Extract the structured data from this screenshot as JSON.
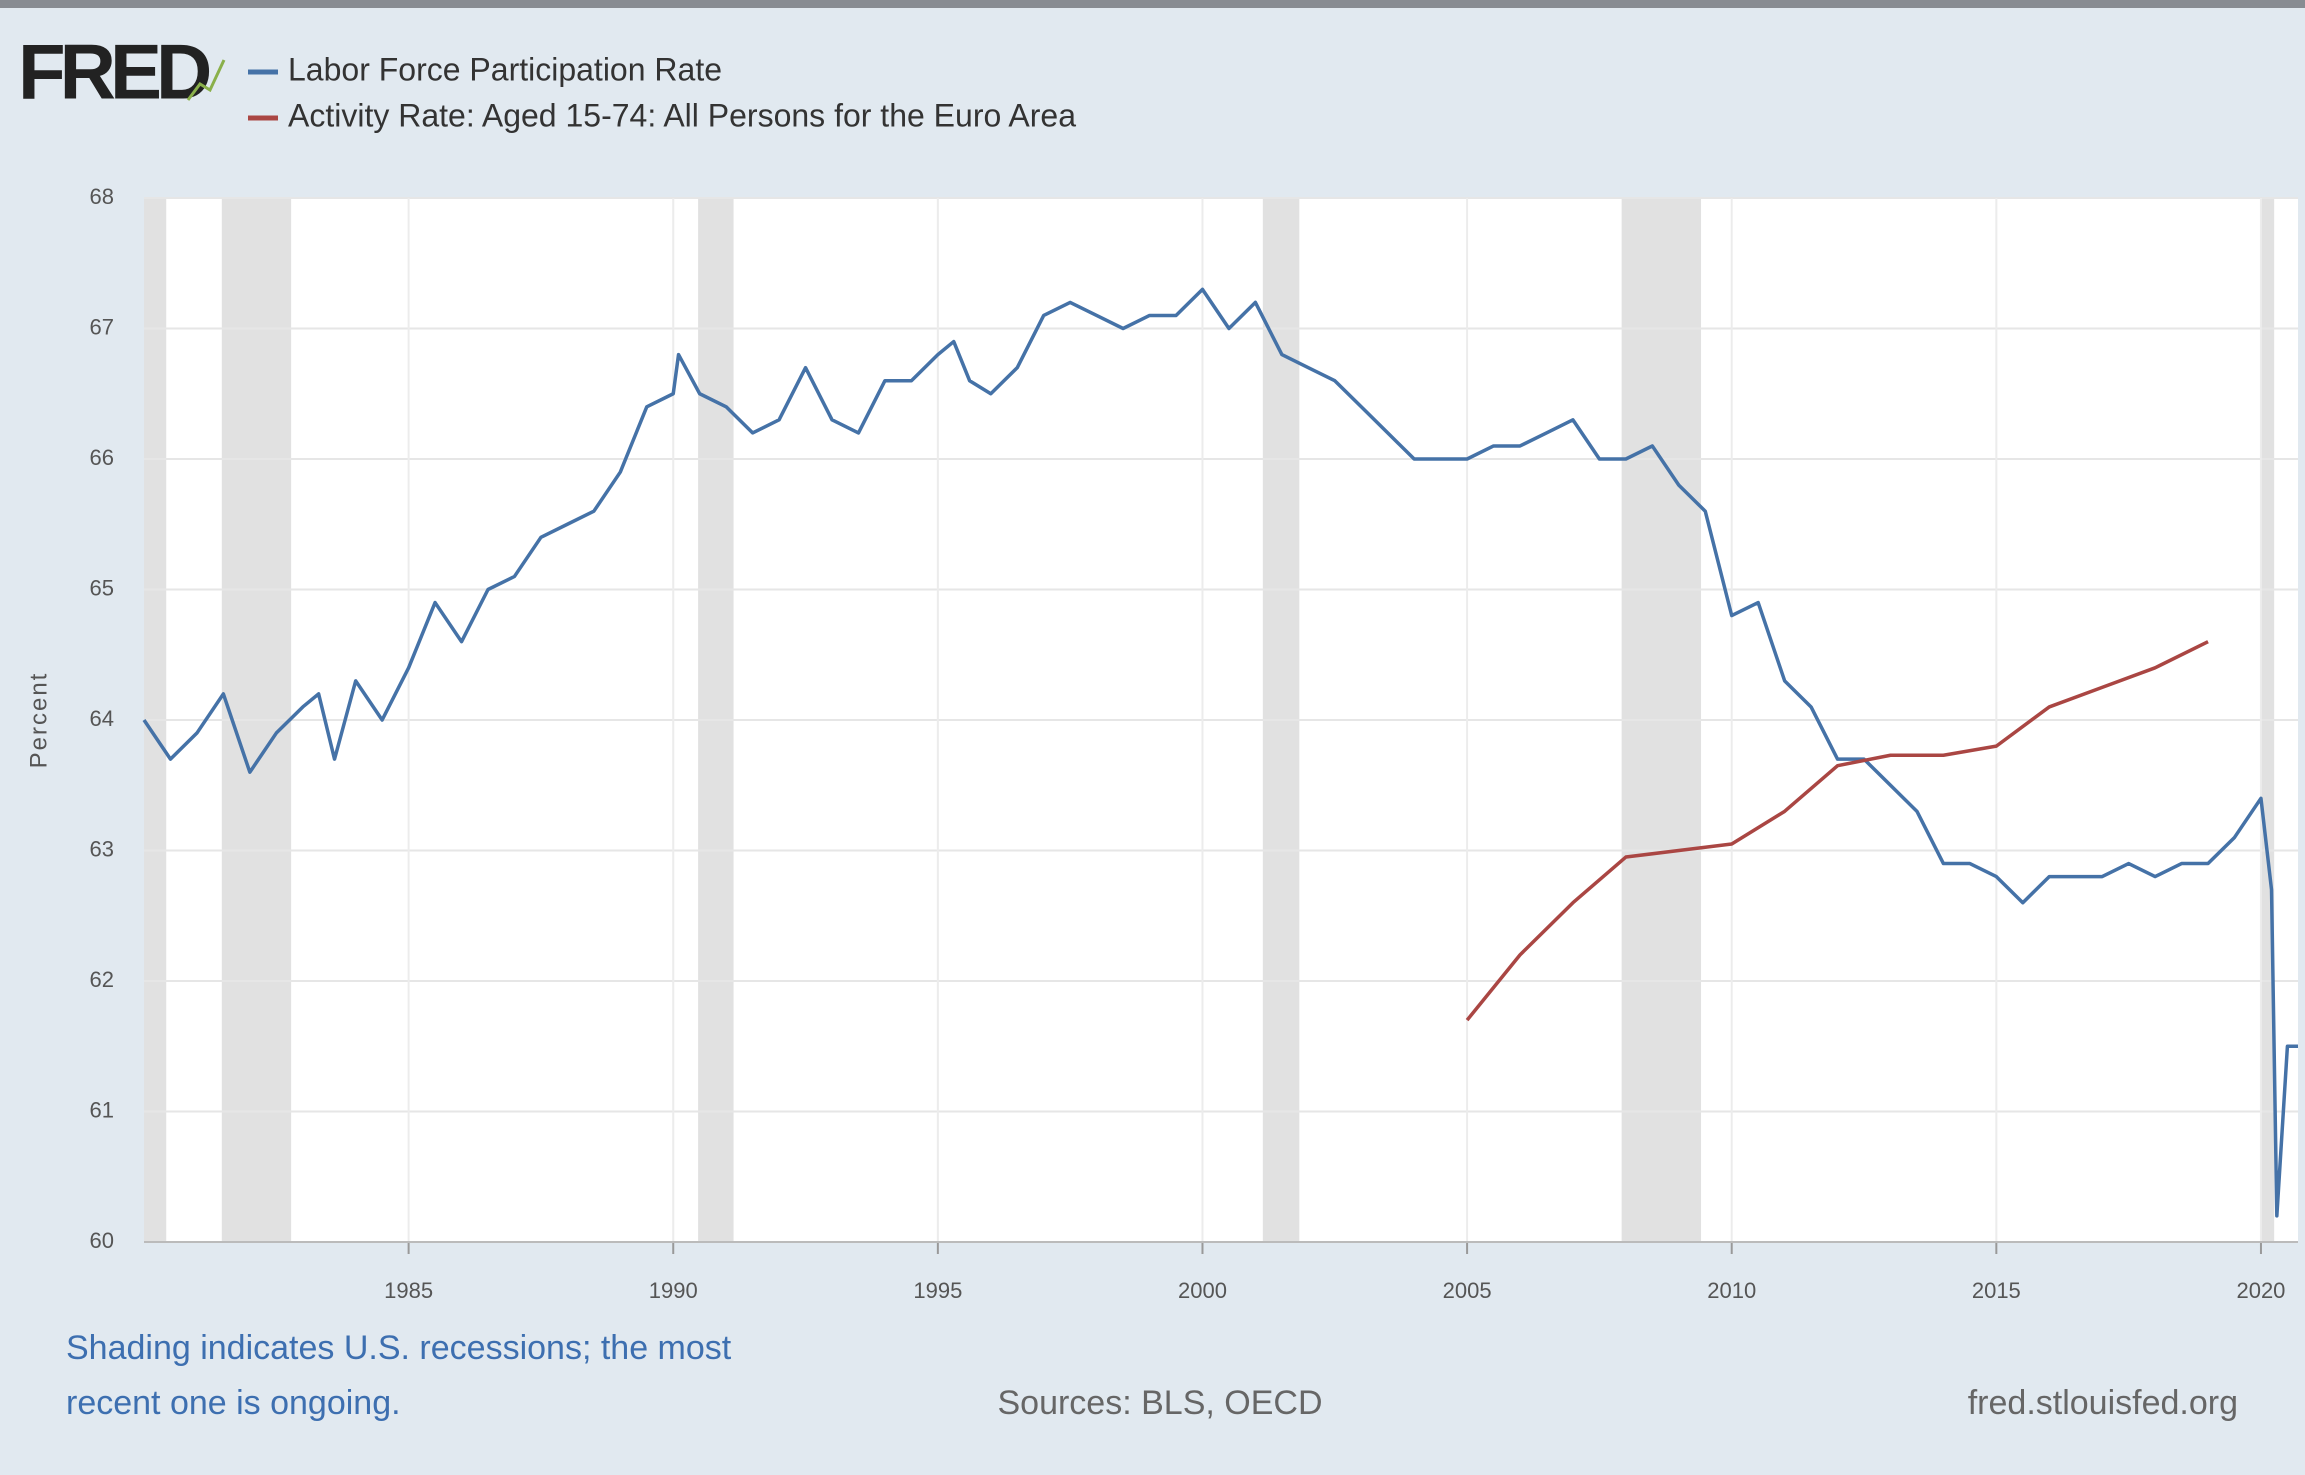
{
  "logo": "FRED",
  "chart_data": {
    "type": "line",
    "y_label": "Percent",
    "xlim": [
      1980,
      2020.7
    ],
    "xticks": [
      1985,
      1990,
      1995,
      2000,
      2005,
      2010,
      2015,
      2020
    ],
    "ylim": [
      60,
      68
    ],
    "yticks": [
      60,
      61,
      62,
      63,
      64,
      65,
      66,
      67,
      68
    ],
    "grid": true,
    "recessions": [
      [
        1980.0,
        1980.42
      ],
      [
        1981.47,
        1982.78
      ],
      [
        1990.47,
        1991.14
      ],
      [
        2001.14,
        2001.83
      ],
      [
        2007.92,
        2009.42
      ],
      [
        2020.0,
        2020.25
      ]
    ],
    "series": [
      {
        "name": "Labor Force Participation Rate",
        "color": "#4572a7",
        "x": [
          1980.0,
          1980.5,
          1981.0,
          1981.5,
          1982.0,
          1982.5,
          1983.0,
          1983.3,
          1983.6,
          1984.0,
          1984.5,
          1985.0,
          1985.5,
          1986.0,
          1986.5,
          1987.0,
          1987.5,
          1988.0,
          1988.5,
          1989.0,
          1989.5,
          1990.0,
          1990.1,
          1990.5,
          1991.0,
          1991.5,
          1992.0,
          1992.5,
          1993.0,
          1993.5,
          1994.0,
          1994.5,
          1995.0,
          1995.3,
          1995.6,
          1996.0,
          1996.5,
          1997.0,
          1997.5,
          1998.0,
          1998.5,
          1999.0,
          1999.5,
          2000.0,
          2000.5,
          2001.0,
          2001.5,
          2002.0,
          2002.5,
          2003.0,
          2003.5,
          2004.0,
          2004.5,
          2005.0,
          2005.5,
          2006.0,
          2006.5,
          2007.0,
          2007.5,
          2008.0,
          2008.5,
          2009.0,
          2009.5,
          2010.0,
          2010.5,
          2011.0,
          2011.5,
          2012.0,
          2012.5,
          2013.0,
          2013.5,
          2014.0,
          2014.5,
          2015.0,
          2015.5,
          2016.0,
          2016.5,
          2017.0,
          2017.5,
          2018.0,
          2018.5,
          2019.0,
          2019.5,
          2020.0,
          2020.2,
          2020.3,
          2020.5,
          2020.7
        ],
        "values": [
          64.0,
          63.7,
          63.9,
          64.2,
          63.6,
          63.9,
          64.1,
          64.2,
          63.7,
          64.3,
          64.0,
          64.4,
          64.9,
          64.6,
          65.0,
          65.1,
          65.4,
          65.5,
          65.6,
          65.9,
          66.4,
          66.5,
          66.8,
          66.5,
          66.4,
          66.2,
          66.3,
          66.7,
          66.3,
          66.2,
          66.6,
          66.6,
          66.8,
          66.9,
          66.6,
          66.5,
          66.7,
          67.1,
          67.2,
          67.1,
          67.0,
          67.1,
          67.1,
          67.3,
          67.0,
          67.2,
          66.8,
          66.7,
          66.6,
          66.4,
          66.2,
          66.0,
          66.0,
          66.0,
          66.1,
          66.1,
          66.2,
          66.3,
          66.0,
          66.0,
          66.1,
          65.8,
          65.6,
          64.8,
          64.9,
          64.3,
          64.1,
          63.7,
          63.7,
          63.5,
          63.3,
          62.9,
          62.9,
          62.8,
          62.6,
          62.8,
          62.8,
          62.8,
          62.9,
          62.8,
          62.9,
          62.9,
          63.1,
          63.4,
          62.7,
          60.2,
          61.5,
          61.5
        ]
      },
      {
        "name": "Activity Rate: Aged 15-74: All Persons for the Euro Area",
        "color": "#aa4643",
        "x": [
          2005,
          2006,
          2007,
          2008,
          2009,
          2010,
          2011,
          2012,
          2013,
          2014,
          2015,
          2016,
          2017,
          2018,
          2019
        ],
        "values": [
          61.7,
          62.2,
          62.6,
          62.95,
          63.0,
          63.05,
          63.3,
          63.65,
          63.73,
          63.73,
          63.8,
          64.1,
          64.25,
          64.4,
          64.6
        ]
      }
    ]
  },
  "footer": {
    "note": [
      "Shading indicates U.S. recessions; the most",
      "recent one is ongoing."
    ],
    "sources": "Sources: BLS, OECD",
    "url": "fred.stlouisfed.org"
  }
}
